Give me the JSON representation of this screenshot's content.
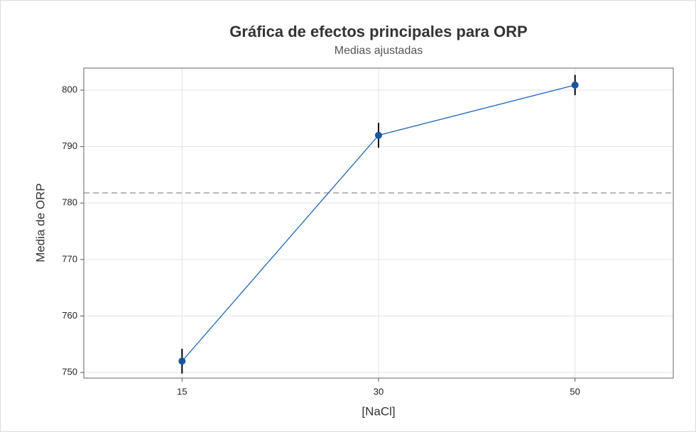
{
  "chart_data": {
    "type": "line",
    "title": "Gráfica de efectos principales para ORP",
    "subtitle": "Medias ajustadas",
    "x_label": "[NaCl]",
    "y_label": "Media de ORP",
    "categories": [
      "15",
      "30",
      "50"
    ],
    "values": [
      752.0,
      792.0,
      800.9
    ],
    "errors": [
      2.2,
      2.2,
      1.8
    ],
    "color": "#2166b8",
    "marker_color": "#1a56a0",
    "error_color": "#000000",
    "reference_line": 781.8,
    "ylim": [
      749,
      803.9
    ],
    "yticks": [
      750,
      760,
      770,
      780,
      790,
      800
    ],
    "grid": true
  }
}
